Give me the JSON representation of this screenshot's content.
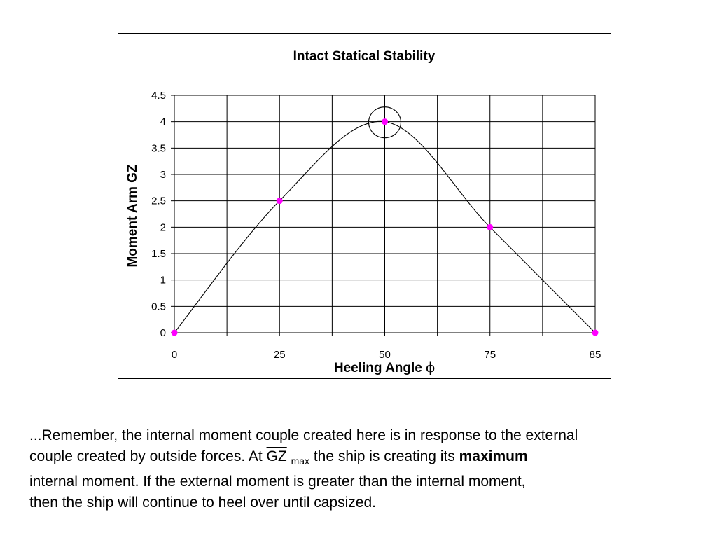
{
  "chart_data": {
    "type": "line",
    "title": "Intact Statical Stability",
    "xlabel": "Heeling Angle",
    "xlabel_symbol": "ϕ",
    "ylabel": "Moment Arm GZ",
    "categories": [
      "0",
      "25",
      "50",
      "75",
      "85"
    ],
    "ylim": [
      0,
      4.5
    ],
    "y_ticks": [
      "0",
      "0.5",
      "1",
      "1.5",
      "2",
      "2.5",
      "3",
      "3.5",
      "4",
      "4.5"
    ],
    "x_ticks": [
      "0",
      "25",
      "50",
      "75",
      "85"
    ],
    "grid": true,
    "series": [
      {
        "values": [
          0,
          2.5,
          4,
          2,
          0
        ],
        "line_color": "#000000",
        "marker_color": "#ff00ff"
      }
    ],
    "annotations": [
      {
        "type": "circle",
        "target": "peak",
        "category": "50",
        "value": 4
      }
    ]
  },
  "caption": {
    "line1": "...Remember, the internal moment couple created here is in response to the external",
    "line2_pre": "couple created by outside forces.  At ",
    "line2_gz": "GZ",
    "line2_sub": "max",
    "line2_mid": " the ship is creating its ",
    "line2_bold": "maximum",
    "line3": "internal moment.  If the external moment is greater than the internal moment,",
    "line4": "then the ship will continue to heel over until capsized."
  }
}
